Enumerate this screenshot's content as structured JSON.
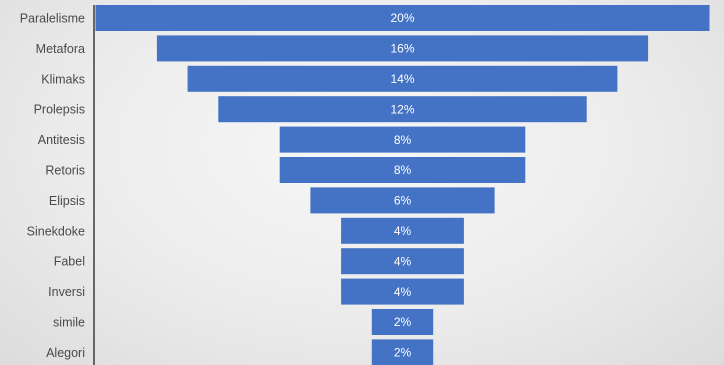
{
  "chart_data": {
    "type": "bar",
    "orientation": "horizontal-funnel",
    "categories": [
      "Paralelisme",
      "Metafora",
      "Klimaks",
      "Prolepsis",
      "Antitesis",
      "Retoris",
      "Elipsis",
      "Sinekdoke",
      "Fabel",
      "Inversi",
      "simile",
      "Alegori"
    ],
    "values": [
      20,
      16,
      14,
      12,
      8,
      8,
      6,
      4,
      4,
      4,
      2,
      2
    ],
    "value_labels": [
      "20%",
      "16%",
      "14%",
      "12%",
      "8%",
      "8%",
      "6%",
      "4%",
      "4%",
      "4%",
      "2%",
      "2%"
    ],
    "unit": "%",
    "title": "",
    "xlabel": "",
    "ylabel": "",
    "xlim": [
      0,
      20
    ],
    "grid": false,
    "legend": "none",
    "bar_color": "#4472c4",
    "label_color": "#ffffff"
  }
}
